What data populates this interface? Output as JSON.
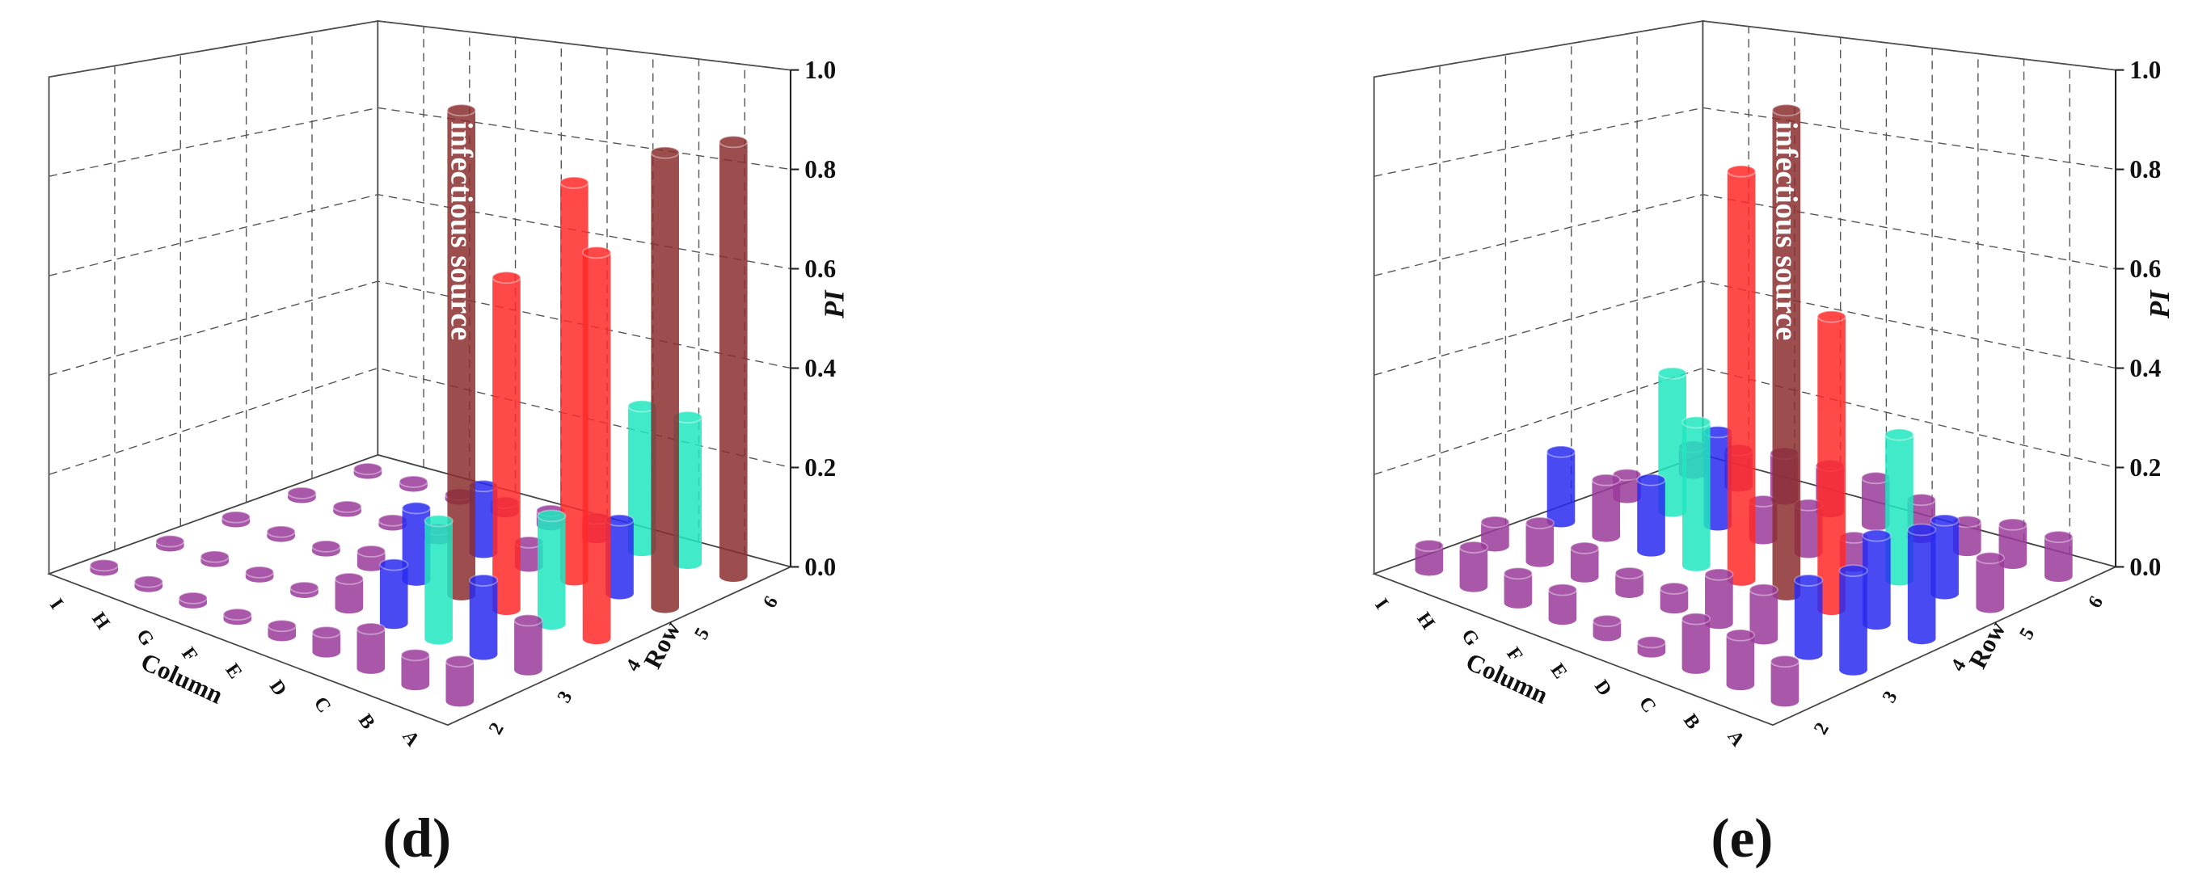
{
  "chart_data": [
    {
      "type": "bar3d",
      "panel_label": "(d)",
      "zlabel": "PI",
      "xlabel": "Column",
      "ylabel": "Row",
      "columns": [
        "I",
        "H",
        "G",
        "F",
        "E",
        "D",
        "C",
        "B",
        "A"
      ],
      "rows": [
        "2",
        "3",
        "4",
        "5",
        "6"
      ],
      "values": [
        [
          0.01,
          0.01,
          0.01,
          0.01,
          0.02,
          0.04,
          0.08,
          0.06,
          0.08
        ],
        [
          0.01,
          0.01,
          0.01,
          0.01,
          0.06,
          0.12,
          0.24,
          0.15,
          0.1
        ],
        [
          0.01,
          0.01,
          0.01,
          0.03,
          0.15,
          1.0,
          0.68,
          0.22,
          0.78
        ],
        [
          0.01,
          0.01,
          0.01,
          0.02,
          0.14,
          0.05,
          0.82,
          0.15,
          0.92
        ],
        [
          0.01,
          0.01,
          0.01,
          0.02,
          0.03,
          0.04,
          0.3,
          0.3,
          0.88
        ]
      ],
      "colors": [
        [
          "#9b3a9b",
          "#9b3a9b",
          "#9b3a9b",
          "#9b3a9b",
          "#9b3a9b",
          "#9b3a9b",
          "#9b3a9b",
          "#9b3a9b",
          "#9b3a9b"
        ],
        [
          "#9b3a9b",
          "#9b3a9b",
          "#9b3a9b",
          "#9b3a9b",
          "#9b3a9b",
          "#2b2bf0",
          "#20e8c0",
          "#2b2bf0",
          "#9b3a9b"
        ],
        [
          "#9b3a9b",
          "#9b3a9b",
          "#9b3a9b",
          "#9b3a9b",
          "#2b2bf0",
          "#8b2e2e",
          "#ff2a2a",
          "#20e8c0",
          "#ff2a2a"
        ],
        [
          "#9b3a9b",
          "#9b3a9b",
          "#9b3a9b",
          "#9b3a9b",
          "#2b2bf0",
          "#9b3a9b",
          "#ff2a2a",
          "#2b2bf0",
          "#8b2e2e"
        ],
        [
          "#9b3a9b",
          "#9b3a9b",
          "#9b3a9b",
          "#9b3a9b",
          "#9b3a9b",
          "#9b3a9b",
          "#20e8c0",
          "#20e8c0",
          "#8b2e2e"
        ]
      ],
      "zlim": [
        0,
        1
      ],
      "zticks": [
        {
          "value": 0,
          "label": "0.0"
        },
        {
          "value": 0.2,
          "label": "0.2"
        },
        {
          "value": 0.4,
          "label": "0.4"
        },
        {
          "value": 0.6,
          "label": "0.6"
        },
        {
          "value": 0.8,
          "label": "0.8"
        },
        {
          "value": 1,
          "label": "1.0"
        }
      ],
      "annotation": "infectious source",
      "grid": true
    },
    {
      "type": "bar3d",
      "panel_label": "(e)",
      "zlabel": "PI",
      "xlabel": "Column",
      "ylabel": "Row",
      "columns": [
        "I",
        "H",
        "G",
        "F",
        "E",
        "D",
        "C",
        "B",
        "A"
      ],
      "rows": [
        "2",
        "3",
        "4",
        "5",
        "6"
      ],
      "values": [
        [
          0.05,
          0.08,
          0.06,
          0.06,
          0.03,
          0.02,
          0.1,
          0.1,
          0.08
        ],
        [
          0.05,
          0.08,
          0.06,
          0.04,
          0.04,
          0.1,
          0.1,
          0.15,
          0.2
        ],
        [
          0.15,
          0.12,
          0.15,
          0.3,
          0.85,
          1.0,
          0.6,
          0.18,
          0.22
        ],
        [
          0.05,
          0.3,
          0.2,
          0.08,
          0.1,
          0.06,
          0.3,
          0.15,
          0.1
        ],
        [
          0.06,
          0.08,
          0.1,
          0.1,
          0.1,
          0.08,
          0.06,
          0.08,
          0.08
        ]
      ],
      "colors": [
        [
          "#9b3a9b",
          "#9b3a9b",
          "#9b3a9b",
          "#9b3a9b",
          "#9b3a9b",
          "#9b3a9b",
          "#9b3a9b",
          "#9b3a9b",
          "#9b3a9b"
        ],
        [
          "#9b3a9b",
          "#9b3a9b",
          "#9b3a9b",
          "#9b3a9b",
          "#9b3a9b",
          "#9b3a9b",
          "#9b3a9b",
          "#2b2bf0",
          "#2b2bf0"
        ],
        [
          "#2b2bf0",
          "#9b3a9b",
          "#2b2bf0",
          "#20e8c0",
          "#ff2a2a",
          "#8b2e2e",
          "#ff2a2a",
          "#2b2bf0",
          "#2b2bf0"
        ],
        [
          "#9b3a9b",
          "#20e8c0",
          "#2b2bf0",
          "#9b3a9b",
          "#9b3a9b",
          "#9b3a9b",
          "#20e8c0",
          "#2b2bf0",
          "#9b3a9b"
        ],
        [
          "#9b3a9b",
          "#9b3a9b",
          "#9b3a9b",
          "#9b3a9b",
          "#9b3a9b",
          "#9b3a9b",
          "#9b3a9b",
          "#9b3a9b",
          "#9b3a9b"
        ]
      ],
      "zlim": [
        0,
        1
      ],
      "zticks": [
        {
          "value": 0,
          "label": "0.0"
        },
        {
          "value": 0.2,
          "label": "0.2"
        },
        {
          "value": 0.4,
          "label": "0.4"
        },
        {
          "value": 0.6,
          "label": "0.6"
        },
        {
          "value": 0.8,
          "label": "0.8"
        },
        {
          "value": 1,
          "label": "1.0"
        }
      ],
      "annotation": "infectious source",
      "grid": true
    }
  ]
}
